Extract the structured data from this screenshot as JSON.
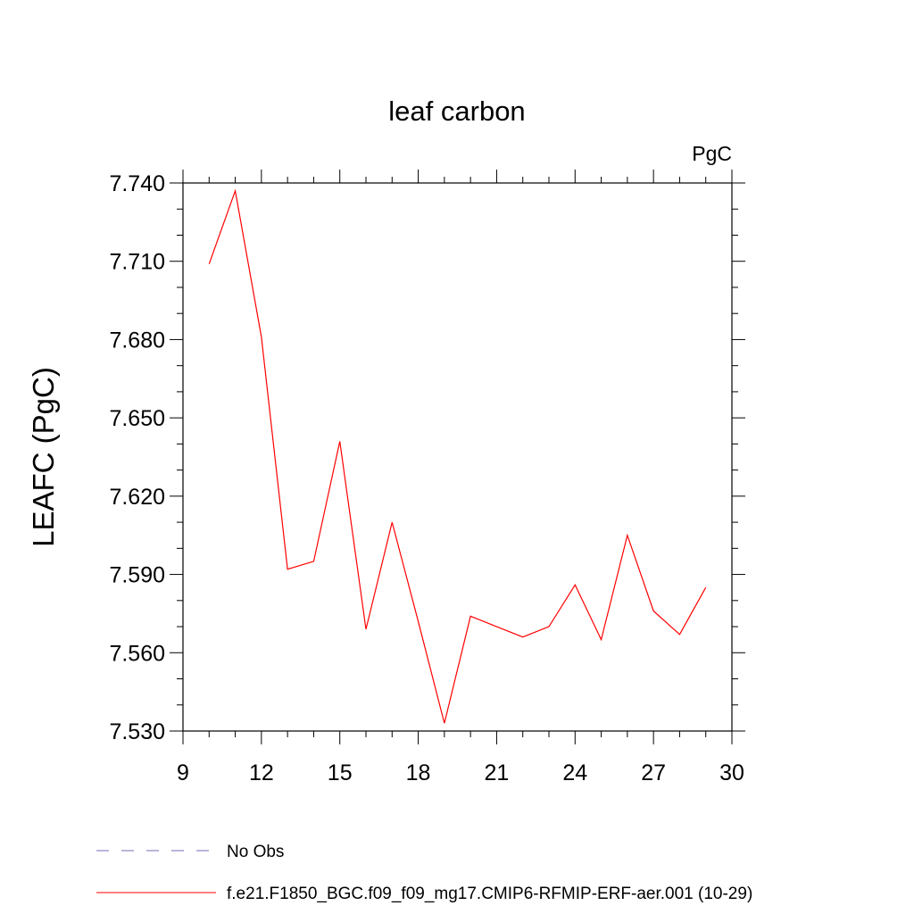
{
  "chart_data": {
    "type": "line",
    "title": "leaf carbon",
    "units": "PgC",
    "ylabel": "LEAFC  (PgC)",
    "xlabel": "",
    "xlim": [
      9,
      30
    ],
    "ylim": [
      7.53,
      7.74
    ],
    "x_ticks": [
      9,
      12,
      15,
      18,
      21,
      24,
      27,
      30
    ],
    "y_ticks": [
      "7.530",
      "7.560",
      "7.590",
      "7.620",
      "7.650",
      "7.680",
      "7.710",
      "7.740"
    ],
    "grid": false,
    "legend_position": "bottom",
    "series": [
      {
        "name": "f.e21.F1850_BGC.f09_f09_mg17.CMIP6-RFMIP-ERF-aer.001 (10-29)",
        "color": "#ff0000",
        "style": "solid",
        "x": [
          10,
          11,
          12,
          13,
          14,
          15,
          16,
          17,
          18,
          19,
          20,
          21,
          22,
          23,
          24,
          25,
          26,
          27,
          28,
          29
        ],
        "y": [
          7.709,
          7.737,
          7.681,
          7.592,
          7.595,
          7.641,
          7.569,
          7.61,
          7.572,
          7.533,
          7.574,
          7.57,
          7.566,
          7.57,
          7.586,
          7.565,
          7.605,
          7.576,
          7.567,
          7.585
        ]
      }
    ],
    "legend": [
      {
        "label": "No Obs",
        "color": "#7b68b5",
        "style": "dashed"
      },
      {
        "label": "f.e21.F1850_BGC.f09_f09_mg17.CMIP6-RFMIP-ERF-aer.001 (10-29)",
        "color": "#ff0000",
        "style": "solid"
      }
    ]
  }
}
